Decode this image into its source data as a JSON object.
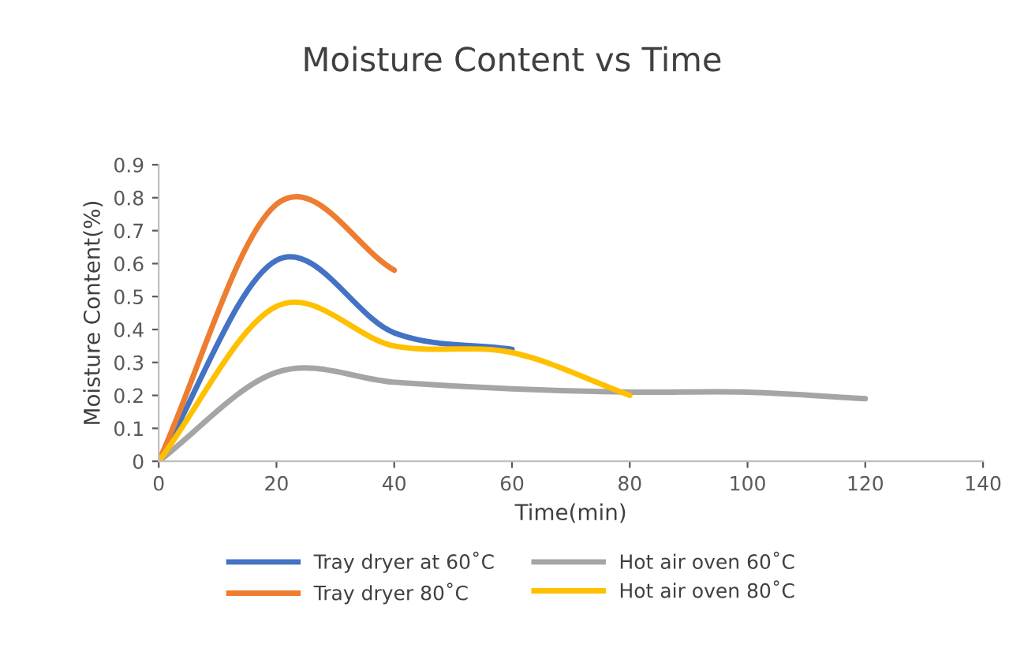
{
  "chart_data": {
    "type": "line",
    "title": "Moisture Content vs Time",
    "xlabel": "Time(min)",
    "ylabel": "Moisture Content(%)",
    "xlim": [
      0,
      140
    ],
    "xticks": [
      0,
      20,
      40,
      60,
      80,
      100,
      120,
      140
    ],
    "ylim": [
      0,
      0.9
    ],
    "yticks": [
      0,
      0.1,
      0.2,
      0.3,
      0.4,
      0.5,
      0.6,
      0.7,
      0.8,
      0.9
    ],
    "grid": false,
    "legend": "bottom",
    "marker": "none",
    "line_style": "solid",
    "series": [
      {
        "name": "Tray dryer at 60˚C",
        "color": "#4472c4",
        "x": [
          0,
          20,
          40,
          60
        ],
        "values": [
          0,
          0.61,
          0.39,
          0.34
        ]
      },
      {
        "name": "Tray dryer 80˚C",
        "color": "#ed7d31",
        "x": [
          0,
          20,
          40
        ],
        "values": [
          0,
          0.78,
          0.58
        ]
      },
      {
        "name": "Hot air oven 60˚C",
        "color": "#a5a5a5",
        "x": [
          0,
          20,
          40,
          60,
          80,
          100,
          120
        ],
        "values": [
          0,
          0.27,
          0.24,
          0.22,
          0.21,
          0.21,
          0.19
        ]
      },
      {
        "name": "Hot air oven 80˚C",
        "color": "#ffc000",
        "x": [
          0,
          20,
          40,
          60,
          80
        ],
        "values": [
          0,
          0.47,
          0.35,
          0.33,
          0.2
        ]
      }
    ]
  }
}
